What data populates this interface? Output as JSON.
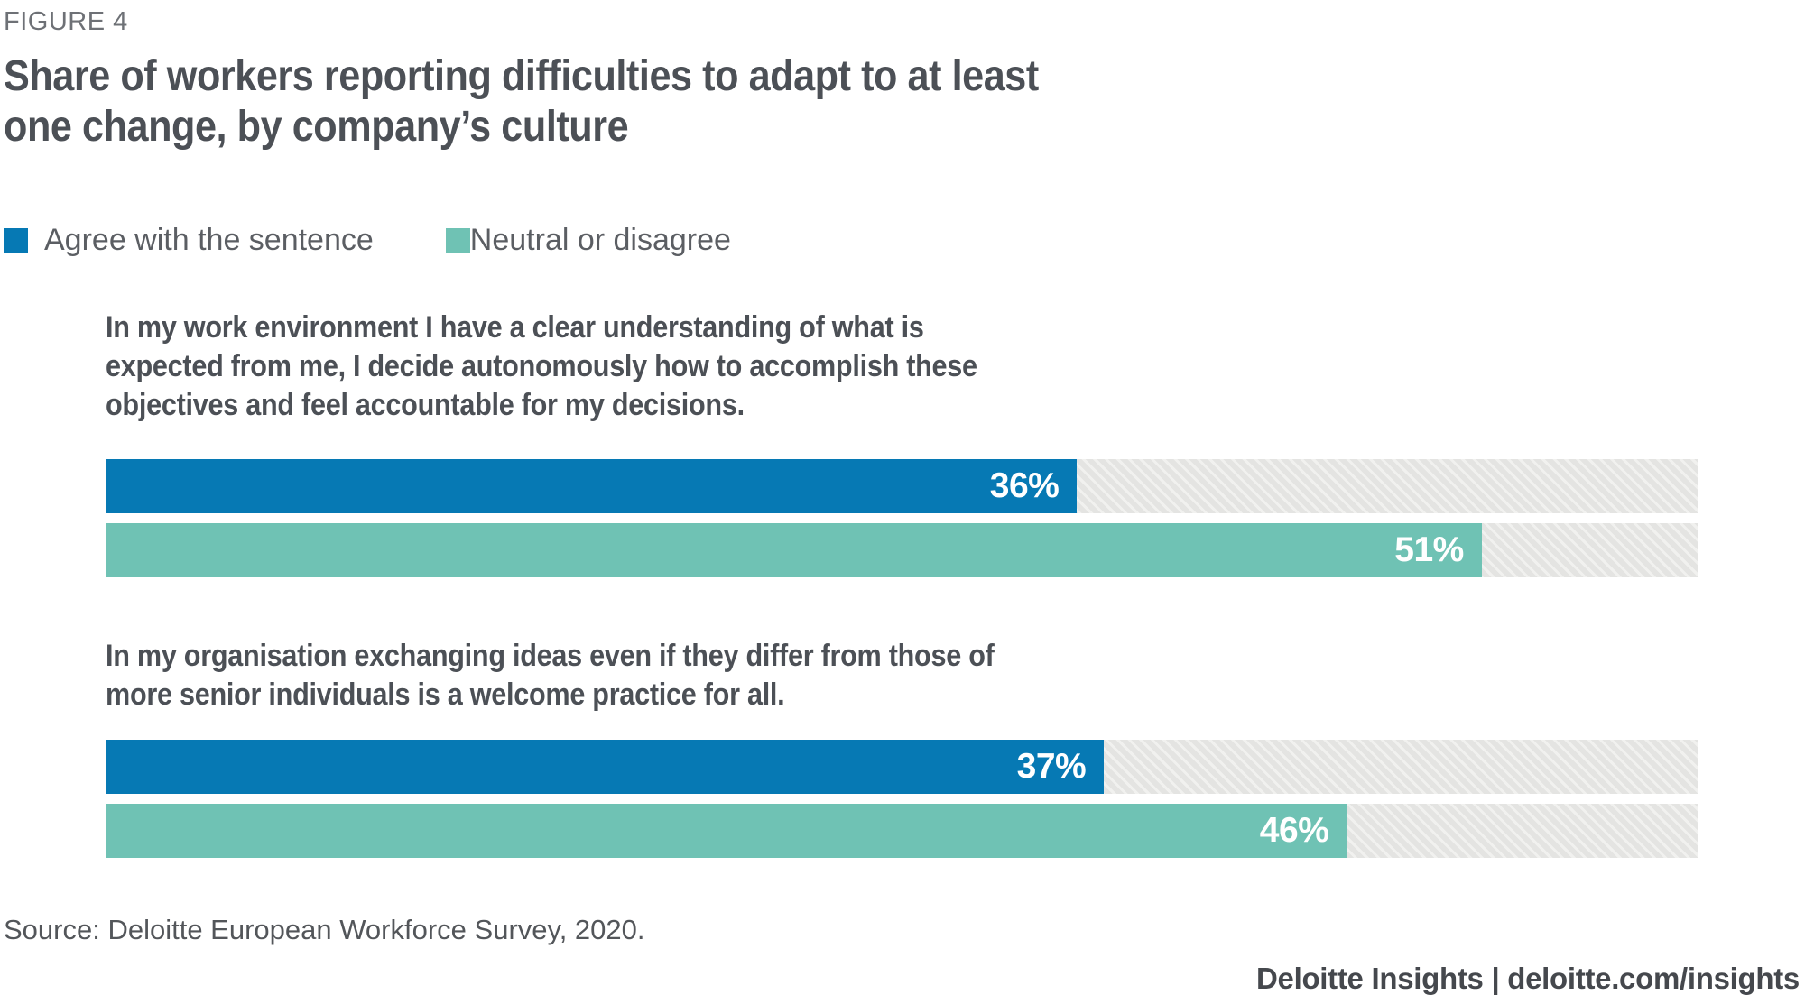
{
  "figure_label": "FIGURE 4",
  "title_lines": [
    "Share of workers reporting difficulties to adapt to at least",
    "one change, by company’s culture"
  ],
  "legend": [
    {
      "label": "Agree with the sentence",
      "color": "#0679B4"
    },
    {
      "label": "Neutral or disagree",
      "color": "#6FC2B4"
    }
  ],
  "groups": [
    {
      "question_lines": [
        "In my work environment I have a clear understanding of what is",
        "expected from me, I decide autonomously how to accomplish these",
        "objectives and feel accountable for my decisions."
      ],
      "bars": [
        {
          "series": "Agree with the sentence",
          "value": 36,
          "label": "36%"
        },
        {
          "series": "Neutral or disagree",
          "value": 51,
          "label": "51%"
        }
      ]
    },
    {
      "question_lines": [
        "In my organisation exchanging ideas even if they differ from those of",
        "more senior individuals is a welcome practice for all."
      ],
      "bars": [
        {
          "series": "Agree with the sentence",
          "value": 37,
          "label": "37%"
        },
        {
          "series": "Neutral or disagree",
          "value": 46,
          "label": "46%"
        }
      ]
    }
  ],
  "source": "Source: Deloitte European Workforce Survey, 2020.",
  "footer": "Deloitte Insights | deloitte.com/insights",
  "colors": {
    "agree_blue": "#0679B4",
    "neutral_teal": "#6FC2B4",
    "track_gray": "#E4E4E2",
    "track_stripe": "#F1F1EF",
    "heading_gray": "#4C5056",
    "body_gray": "#53565A",
    "muted_gray": "#6E7176",
    "bar_label_white": "#FFFFFF"
  },
  "chart_data": {
    "type": "bar",
    "orientation": "horizontal",
    "figure_label": "FIGURE 4",
    "title": "Share of workers reporting difficulties to adapt to at least one change, by company’s culture",
    "categories": [
      "In my work environment I have a clear understanding of what is expected from me, I decide autonomously how to accomplish these objectives and feel accountable for my decisions.",
      "In my organisation exchanging ideas even if they differ from those of more senior individuals is a welcome practice for all."
    ],
    "series": [
      {
        "name": "Agree with the sentence",
        "color": "#0679B4",
        "values": [
          36,
          37
        ]
      },
      {
        "name": "Neutral or disagree",
        "color": "#6FC2B4",
        "values": [
          51,
          46
        ]
      }
    ],
    "unit": "percent",
    "data_labels": [
      "36%",
      "51%",
      "37%",
      "46%"
    ],
    "xlim": [
      0,
      59
    ],
    "grid": false,
    "legend_position": "top-left",
    "track_style": "full-width diagonal-hatched gray background",
    "source": "Source: Deloitte European Workforce Survey, 2020.",
    "branding": "Deloitte Insights | deloitte.com/insights"
  }
}
